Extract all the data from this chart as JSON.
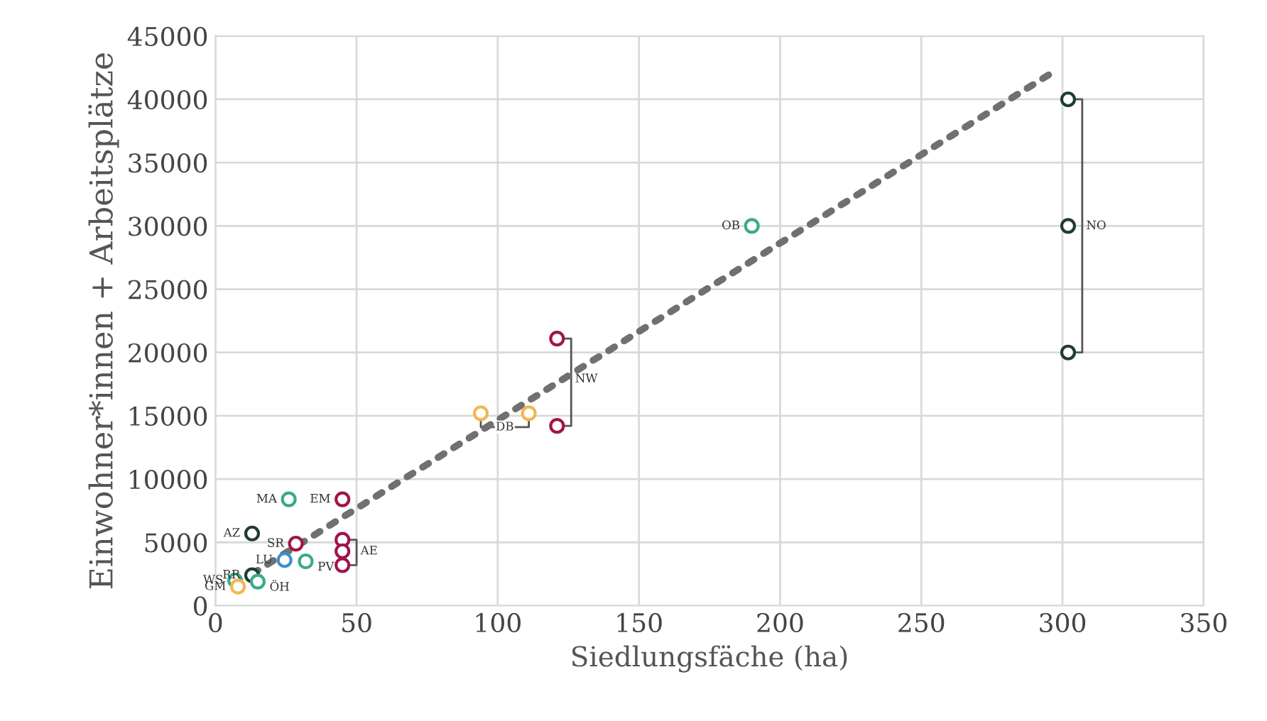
{
  "chart_data": {
    "type": "scatter",
    "xlabel": "Siedlungsfäche (ha)",
    "ylabel": "Einwohner*innen + Arbeitsplätze",
    "xlim": [
      0,
      350
    ],
    "xticks": [
      0,
      50,
      100,
      150,
      200,
      250,
      300,
      350
    ],
    "ylim": [
      0,
      45000
    ],
    "yticks": [
      0,
      5000,
      10000,
      15000,
      20000,
      25000,
      30000,
      35000,
      40000,
      45000
    ],
    "grid": true,
    "marker": "circle",
    "series": [
      {
        "color": "#1f3d2f",
        "x": [
          302,
          302,
          302
        ],
        "values": [
          40000,
          30000,
          20000
        ]
      },
      {
        "color": "#3aaa8a",
        "x": [
          190
        ],
        "values": [
          30000
        ]
      },
      {
        "color": "#a0154a",
        "x": [
          121,
          121
        ],
        "values": [
          21100,
          14200
        ]
      },
      {
        "color": "#f0b850",
        "x": [
          94,
          111
        ],
        "values": [
          15200,
          15200
        ]
      },
      {
        "color": "#3aaa8a",
        "x": [
          26,
          32,
          7
        ],
        "values": [
          8400,
          3500,
          2000
        ]
      },
      {
        "color": "#a0154a",
        "x": [
          45,
          28.5
        ],
        "values": [
          8400,
          4900
        ]
      },
      {
        "color": "#1f3d2f",
        "x": [
          13
        ],
        "values": [
          5700
        ]
      },
      {
        "color": "#1f3d2f",
        "x": [
          13
        ],
        "values": [
          2400
        ]
      },
      {
        "color": "#a0154a",
        "x": [
          45,
          45,
          45
        ],
        "values": [
          5200,
          4300,
          3200
        ]
      },
      {
        "color": "#3c8fd0",
        "x": [
          24.5
        ],
        "values": [
          3600
        ]
      },
      {
        "color": "#3aaa8a",
        "x": [
          15
        ],
        "values": [
          1900
        ]
      },
      {
        "color": "#f0b850",
        "x": [
          8
        ],
        "values": [
          1500
        ]
      },
      {
        "type": "line",
        "color": "#707070",
        "marker": "none",
        "line_style": "dotted",
        "x": [
          13,
          297
        ],
        "values": [
          2500,
          42200
        ]
      }
    ],
    "annotations": [
      {
        "text": "NO",
        "x": 302,
        "y": 30000
      },
      {
        "text": "OB",
        "x": 190,
        "y": 30000
      },
      {
        "text": "NW",
        "x": 125,
        "y": 17900
      },
      {
        "text": "DB",
        "x": 94,
        "y": 15200
      },
      {
        "text": "MA",
        "x": 26,
        "y": 8400
      },
      {
        "text": "EM",
        "x": 45,
        "y": 8400
      },
      {
        "text": "AZ",
        "x": 13,
        "y": 5700
      },
      {
        "text": "SR",
        "x": 28.5,
        "y": 4900
      },
      {
        "text": "AE",
        "x": 45,
        "y": 4300
      },
      {
        "text": "LU",
        "x": 24.5,
        "y": 3600
      },
      {
        "text": "PV",
        "x": 32,
        "y": 3500
      },
      {
        "text": "RR",
        "x": 13,
        "y": 2400
      },
      {
        "text": "ÖH",
        "x": 15,
        "y": 1900
      },
      {
        "text": "WS",
        "x": 7,
        "y": 2000
      },
      {
        "text": "GM",
        "x": 8,
        "y": 1500
      }
    ]
  }
}
